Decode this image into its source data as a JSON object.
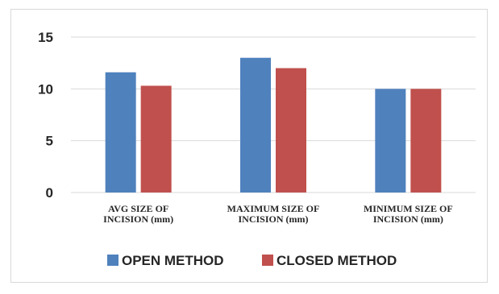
{
  "chart_data": {
    "type": "bar",
    "categories": [
      [
        "AVG SIZE OF",
        "INCISION (mm)"
      ],
      [
        "MAXIMUM SIZE OF",
        "INCISION (mm)"
      ],
      [
        "MINIMUM SIZE OF",
        "INCISION (mm)"
      ]
    ],
    "series": [
      {
        "name": "OPEN METHOD",
        "values": [
          11.6,
          13,
          10
        ],
        "color": "#4f81bd"
      },
      {
        "name": "CLOSED METHOD",
        "values": [
          10.3,
          12,
          10
        ],
        "color": "#c0504d"
      }
    ],
    "ylim": [
      0,
      15
    ],
    "yticks": [
      0,
      5,
      10,
      15
    ],
    "grid": true,
    "legend": "bottom",
    "title": "",
    "xlabel": "",
    "ylabel": ""
  }
}
